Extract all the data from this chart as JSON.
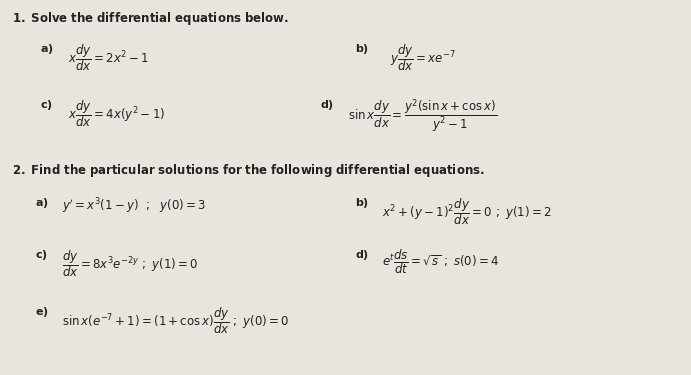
{
  "bg_color": "#e8e4de",
  "text_color": "#2a1f1f",
  "figsize": [
    6.91,
    3.75
  ],
  "dpi": 100,
  "fs_heading": 8.5,
  "fs_eq": 8.5,
  "fs_label": 8.0
}
